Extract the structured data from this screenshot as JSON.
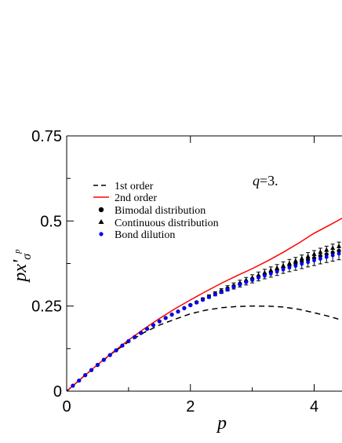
{
  "chart_data": {
    "type": "line",
    "xlabel": "p",
    "ylabel_main": "px'",
    "ylabel_sub": "σ",
    "ylabel_sup": "p",
    "xlim": [
      0,
      4.45
    ],
    "ylim": [
      0,
      0.75
    ],
    "xticks": [
      {
        "value": 0,
        "label": "0"
      },
      {
        "value": 2,
        "label": "2"
      },
      {
        "value": 4,
        "label": "4"
      }
    ],
    "yticks": [
      {
        "value": 0,
        "label": "0"
      },
      {
        "value": 0.25,
        "label": "0.25"
      },
      {
        "value": 0.5,
        "label": "0.5"
      },
      {
        "value": 0.75,
        "label": "0.75"
      }
    ],
    "annotation": {
      "italic": "q",
      "rest": "=3."
    },
    "legend_position": "top-left",
    "series": [
      {
        "name": "1st order",
        "kind": "line",
        "style": "dashed",
        "color": "#000000",
        "x": [
          0,
          0.25,
          0.5,
          0.75,
          1.0,
          1.25,
          1.5,
          1.75,
          2.0,
          2.25,
          2.5,
          2.75,
          3.0,
          3.25,
          3.5,
          3.75,
          4.0,
          4.25,
          4.45
        ],
        "y": [
          0,
          0.0394,
          0.0776,
          0.1132,
          0.145,
          0.1721,
          0.1942,
          0.2113,
          0.2273,
          0.238,
          0.2451,
          0.2488,
          0.25,
          0.2498,
          0.2473,
          0.2406,
          0.2305,
          0.2193,
          0.2086
        ]
      },
      {
        "name": "2nd order",
        "kind": "line",
        "style": "solid",
        "color": "#ff0000",
        "x": [
          0,
          0.25,
          0.5,
          0.75,
          1.0,
          1.25,
          1.5,
          1.75,
          2.0,
          2.25,
          2.5,
          2.75,
          3.0,
          3.25,
          3.5,
          3.75,
          4.0,
          4.25,
          4.45
        ],
        "y": [
          0,
          0.0394,
          0.078,
          0.115,
          0.15,
          0.183,
          0.2135,
          0.242,
          0.268,
          0.293,
          0.317,
          0.339,
          0.36,
          0.383,
          0.408,
          0.435,
          0.464,
          0.488,
          0.508
        ]
      },
      {
        "name": "Bimodal distribution",
        "kind": "scatter",
        "marker": "circle",
        "color": "#000000",
        "x": [
          0,
          0.1,
          0.2,
          0.3,
          0.4,
          0.5,
          0.6,
          0.7,
          0.8,
          0.9,
          1.0,
          1.1,
          1.2,
          1.3,
          1.4,
          1.5,
          1.6,
          1.7,
          1.8,
          1.9,
          2.0,
          2.1,
          2.2,
          2.3,
          2.4,
          2.5,
          2.6,
          2.7,
          2.8,
          2.9,
          3.0,
          3.1,
          3.2,
          3.3,
          3.4,
          3.5,
          3.6,
          3.7,
          3.8,
          3.9,
          4.0,
          4.1,
          4.2,
          4.3,
          4.4
        ],
        "y": [
          0,
          0.016,
          0.031,
          0.047,
          0.062,
          0.077,
          0.092,
          0.106,
          0.12,
          0.134,
          0.147,
          0.159,
          0.171,
          0.183,
          0.194,
          0.205,
          0.215,
          0.225,
          0.234,
          0.244,
          0.253,
          0.261,
          0.27,
          0.278,
          0.286,
          0.294,
          0.302,
          0.309,
          0.316,
          0.323,
          0.33,
          0.337,
          0.344,
          0.35,
          0.356,
          0.363,
          0.369,
          0.374,
          0.38,
          0.386,
          0.391,
          0.397,
          0.402,
          0.407,
          0.412
        ],
        "err": [
          0,
          0,
          0,
          0,
          0,
          0,
          0,
          0,
          0,
          0,
          0,
          0,
          0,
          0,
          0,
          0,
          0,
          0,
          0,
          0,
          0.002,
          0.003,
          0.004,
          0.005,
          0.006,
          0.007,
          0.008,
          0.009,
          0.01,
          0.011,
          0.012,
          0.013,
          0.014,
          0.015,
          0.016,
          0.017,
          0.018,
          0.019,
          0.02,
          0.021,
          0.022,
          0.023,
          0.024,
          0.025,
          0.026
        ]
      },
      {
        "name": "Continuous distribution",
        "kind": "scatter",
        "marker": "triangle",
        "color": "#000000",
        "x": [
          2.5,
          2.6,
          2.7,
          2.8,
          2.9,
          3.0,
          3.1,
          3.2,
          3.3,
          3.4,
          3.5,
          3.6,
          3.7,
          3.8,
          3.9,
          4.0,
          4.1,
          4.2,
          4.3,
          4.4
        ],
        "y": [
          0.294,
          0.302,
          0.31,
          0.318,
          0.326,
          0.333,
          0.341,
          0.348,
          0.355,
          0.362,
          0.369,
          0.376,
          0.383,
          0.39,
          0.396,
          0.403,
          0.409,
          0.415,
          0.421,
          0.426
        ]
      },
      {
        "name": "Bond dilution",
        "kind": "scatter",
        "marker": "circle-small",
        "color": "#0000ff",
        "x": [
          0,
          0.1,
          0.2,
          0.3,
          0.4,
          0.5,
          0.6,
          0.7,
          0.8,
          0.9,
          1.0,
          1.1,
          1.2,
          1.3,
          1.4,
          1.5,
          1.6,
          1.7,
          1.8,
          1.9,
          2.0,
          2.1,
          2.2,
          2.3,
          2.4,
          2.5,
          2.6,
          2.7,
          2.8,
          2.9,
          3.0,
          3.1,
          3.2,
          3.3,
          3.4,
          3.5,
          3.6,
          3.7,
          3.8,
          3.9,
          4.0,
          4.1,
          4.2,
          4.3,
          4.4
        ],
        "y": [
          0,
          0.016,
          0.031,
          0.047,
          0.062,
          0.077,
          0.092,
          0.106,
          0.12,
          0.134,
          0.147,
          0.159,
          0.171,
          0.183,
          0.194,
          0.205,
          0.215,
          0.225,
          0.234,
          0.243,
          0.252,
          0.26,
          0.268,
          0.276,
          0.284,
          0.291,
          0.299,
          0.306,
          0.313,
          0.32,
          0.326,
          0.333,
          0.339,
          0.345,
          0.351,
          0.357,
          0.363,
          0.368,
          0.374,
          0.379,
          0.384,
          0.389,
          0.394,
          0.399,
          0.404
        ]
      }
    ]
  }
}
